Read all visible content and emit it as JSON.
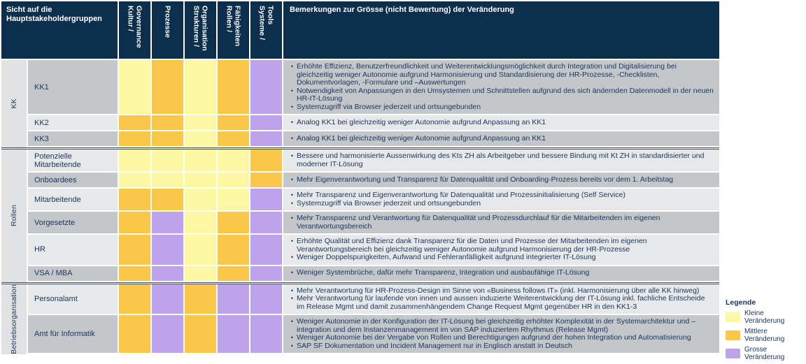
{
  "header": {
    "corner_title": "Sicht auf die Hauptstakeholdergruppen",
    "columns": [
      "Kultur / Governance",
      "Prozesse",
      "Strukturen / Organisation",
      "Rollen / Fähigkeiten",
      "Systeme / Tools"
    ],
    "remarks_title": "Bemerkungen zur Grösse (nicht Bewertung) der Veränderung"
  },
  "colors": {
    "klein": "#fcf8a2",
    "mittel": "#fbc748",
    "gross": "#bda2ec",
    "header_bg": "#0d2f4e",
    "text": "#17365d"
  },
  "groups": [
    {
      "label": "KK",
      "rows": [
        {
          "label": "KK1",
          "cells": [
            "klein",
            "mittel",
            "klein",
            "mittel",
            "gross"
          ],
          "remarks": [
            "Erhöhte Effizienz, Benutzerfreundlichkeit und Weiterentwicklungsmöglichkeit durch Integration und Digitalisierung bei gleichzeitig weniger Autonomie aufgrund Harmonisierung und Standardisierung der HR-Prozesse, -Checklisten, Dokumentvorlagen, -Formulare und –Auswertungen",
            "Notwendigkeit von Anpassungen in den Umsystemen und Schnittstellen aufgrund des sich ändernden Datenmodell in der neuen HR-IT-Lösung",
            "Systemzugriff via Browser jederzeit und ortsungebunden"
          ]
        },
        {
          "label": "KK2",
          "cells": [
            "mittel",
            "mittel",
            "klein",
            "mittel",
            "gross"
          ],
          "remarks": [
            "Analog KK1 bei gleichzeitig weniger Autonomie aufgrund Anpassung an KK1"
          ]
        },
        {
          "label": "KK3",
          "cells": [
            "mittel",
            "mittel",
            "klein",
            "mittel",
            "gross"
          ],
          "remarks": [
            "Analog KK1 bei gleichzeitig weniger Autonomie aufgrund Anpassung an KK1"
          ]
        }
      ]
    },
    {
      "label": "Rollen",
      "rows": [
        {
          "label": "Potenzielle Mitarbeitende",
          "cells": [
            "klein",
            "klein",
            "klein",
            "klein",
            "mittel"
          ],
          "remarks": [
            "Bessere und harmonisierte Aussenwirkung des Kts ZH als Arbeitgeber und bessere Bindung mit Kt ZH in standardisierter und moderner IT-Lösung"
          ]
        },
        {
          "label": "Onboardees",
          "cells": [
            "klein",
            "klein",
            "klein",
            "klein",
            "mittel"
          ],
          "remarks": [
            "Mehr Eigenverantwortung und Transparenz für Datenqualität und Onboarding-Prozess bereits vor dem 1. Arbeitstag"
          ]
        },
        {
          "label": "Mitarbeitende",
          "cells": [
            "mittel",
            "mittel",
            "klein",
            "klein",
            "gross"
          ],
          "remarks": [
            "Mehr Transparenz und Eigenverantwortung für Datenqualität und Prozessinitialisierung (Self Service)",
            "Systemzugriff via Browser jederzeit und ortsungebunden"
          ]
        },
        {
          "label": "Vorgesetzte",
          "cells": [
            "mittel",
            "gross",
            "klein",
            "mittel",
            "gross"
          ],
          "remarks": [
            "Mehr Transparenz und Verantwortung für Datenqualität und Prozessdurchlauf für die Mitarbeitenden im eigenen Verantwortungsbereich"
          ]
        },
        {
          "label": "HR",
          "cells": [
            "mittel",
            "gross",
            "klein",
            "mittel",
            "gross"
          ],
          "remarks": [
            "Erhöhte Qualität und Effizienz dank Transparenz für die Daten und Prozesse der Mitarbeitenden im eigenen Verantwortungsbereich bei gleichzeitig weniger Autonomie aufgrund Harmonisierung der HR-Prozesse",
            "Weniger Doppelspurigkeiten, Aufwand und Fehleranfälligkeit aufgrund integrierter IT-Lösung"
          ]
        },
        {
          "label": "VSA / MBA",
          "cells": [
            "mittel",
            "gross",
            "klein",
            "mittel",
            "gross"
          ],
          "remarks": [
            "Weniger Systembrüche, dafür mehr Transparenz, Integration und ausbaufähige IT-Lösung"
          ]
        }
      ]
    },
    {
      "label": "Betriebsorganisation",
      "rows": [
        {
          "label": "Personalamt",
          "cells": [
            "mittel",
            "gross",
            "mittel",
            "gross",
            "gross"
          ],
          "remarks": [
            "Mehr Verantwortung für HR-Prozess-Design im Sinne von «Business follows IT» (inkl. Harmonisierung über alle KK hinweg)",
            "Mehr Verantwortung für laufende von innen und aussen induzierte Weiterentwicklung der IT-Lösung inkl. fachliche Entscheide im Release Mgmt und damit zusammenhängendem Change Request Mgmt gegenüber HR in den KK1-3"
          ]
        },
        {
          "label": "Amt für Informatik",
          "cells": [
            "mittel",
            "gross",
            "mittel",
            "gross",
            "gross"
          ],
          "remarks": [
            "Weniger Autonomie in der Konfiguration der IT-Lösung bei gleichzeitig erhöhter Komplexität in der Systemarchitektur und –integration und dem Instanzenmanagement im von SAP induziertem Rhythmus (Release Mgmt)",
            "Weniger Autonomie bei der Vergabe von Rollen und Berechtigungen aufgrund der hohen Integration und Automatisierung",
            "SAP SF Dokumentation und Incident Management nur in Englisch anstatt in Deutsch"
          ]
        }
      ]
    }
  ],
  "legend": {
    "title": "Legende",
    "items": [
      {
        "key": "klein",
        "label": "Kleine Veränderung"
      },
      {
        "key": "mittel",
        "label": "Mittlere Veränderung"
      },
      {
        "key": "gross",
        "label": "Grosse Veränderung"
      }
    ]
  }
}
